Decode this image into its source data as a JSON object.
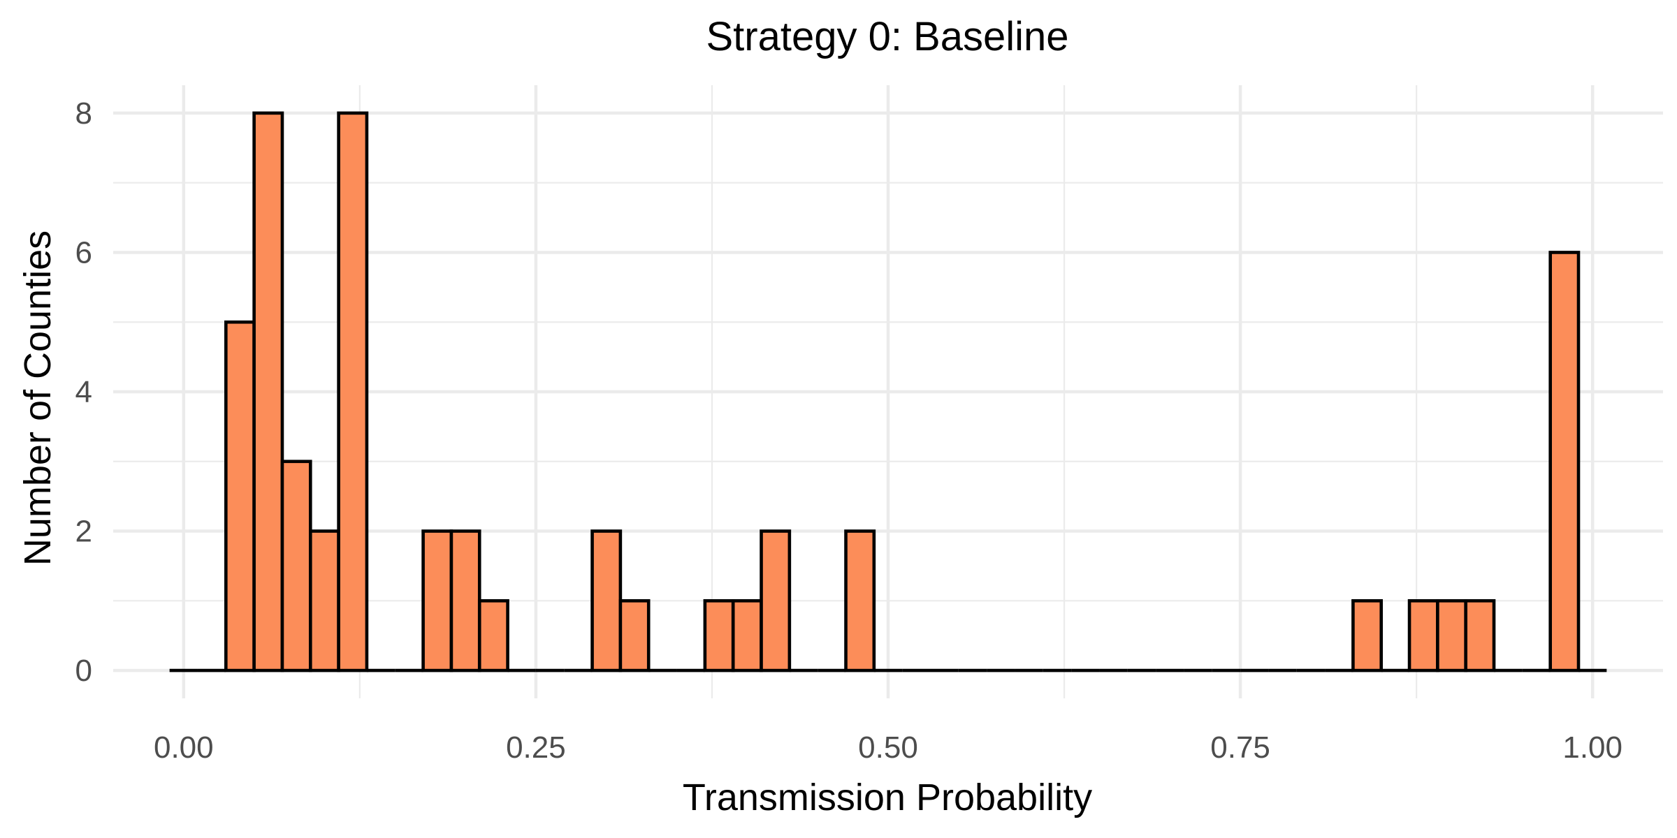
{
  "chart_data": {
    "type": "bar",
    "title": "Strategy 0: Baseline",
    "xlabel": "Transmission Probability",
    "ylabel": "Number of Counties",
    "xlim": [
      -0.05,
      1.05
    ],
    "ylim": [
      -0.4,
      8.4
    ],
    "x_ticks": [
      "0.00",
      "0.25",
      "0.50",
      "0.75",
      "1.00"
    ],
    "x_tick_values": [
      0,
      0.25,
      0.5,
      0.75,
      1.0
    ],
    "y_ticks": [
      "0",
      "2",
      "4",
      "6",
      "8"
    ],
    "y_tick_values": [
      0,
      2,
      4,
      6,
      8
    ],
    "grid": true,
    "bin_width": 0.02,
    "bin_centers": [
      0.0,
      0.02,
      0.04,
      0.06,
      0.08,
      0.1,
      0.12,
      0.14,
      0.16,
      0.18,
      0.2,
      0.22,
      0.24,
      0.26,
      0.28,
      0.3,
      0.32,
      0.34,
      0.36,
      0.38,
      0.4,
      0.42,
      0.44,
      0.46,
      0.48,
      0.5,
      0.52,
      0.54,
      0.56,
      0.58,
      0.6,
      0.62,
      0.64,
      0.66,
      0.68,
      0.7,
      0.72,
      0.74,
      0.76,
      0.78,
      0.8,
      0.82,
      0.84,
      0.86,
      0.88,
      0.9,
      0.92,
      0.94,
      0.96,
      0.98,
      1.0
    ],
    "values": [
      0,
      0,
      5,
      8,
      3,
      2,
      8,
      0,
      0,
      2,
      2,
      1,
      0,
      0,
      0,
      2,
      1,
      0,
      0,
      1,
      1,
      2,
      0,
      0,
      2,
      0,
      0,
      0,
      0,
      0,
      0,
      0,
      0,
      0,
      0,
      0,
      0,
      0,
      0,
      0,
      0,
      0,
      1,
      0,
      1,
      1,
      1,
      0,
      0,
      6,
      0
    ],
    "bar_fill": "#fc8d59",
    "bar_stroke": "#000000",
    "grid_color": "#ebebeb",
    "tick_label_color": "#4d4d4d"
  }
}
